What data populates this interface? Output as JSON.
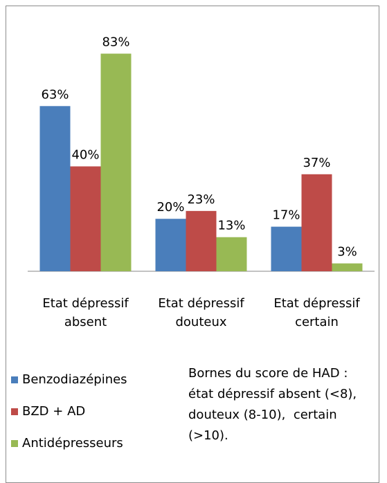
{
  "chart_data": {
    "type": "bar",
    "categories": [
      "Etat dépressif absent",
      "Etat dépressif douteux",
      "Etat dépressif certain"
    ],
    "series": [
      {
        "name": "Benzodiazépines",
        "color": "#4a7ebb",
        "values": [
          63,
          20,
          17
        ],
        "value_labels": [
          "63%",
          "20%",
          "17%"
        ]
      },
      {
        "name": "BZD + AD",
        "color": "#be4b48",
        "values": [
          40,
          23,
          37
        ],
        "value_labels": [
          "40%",
          "23%",
          "37%"
        ]
      },
      {
        "name": "Antidépresseurs",
        "color": "#98b954",
        "values": [
          83,
          13,
          3
        ],
        "value_labels": [
          "83%",
          "13%",
          "3%"
        ]
      }
    ],
    "ylim": [
      0,
      90
    ],
    "annotation": "Bornes du score de HAD : état dépressif absent (<8), douteux (8-10),  certain (>10)."
  }
}
